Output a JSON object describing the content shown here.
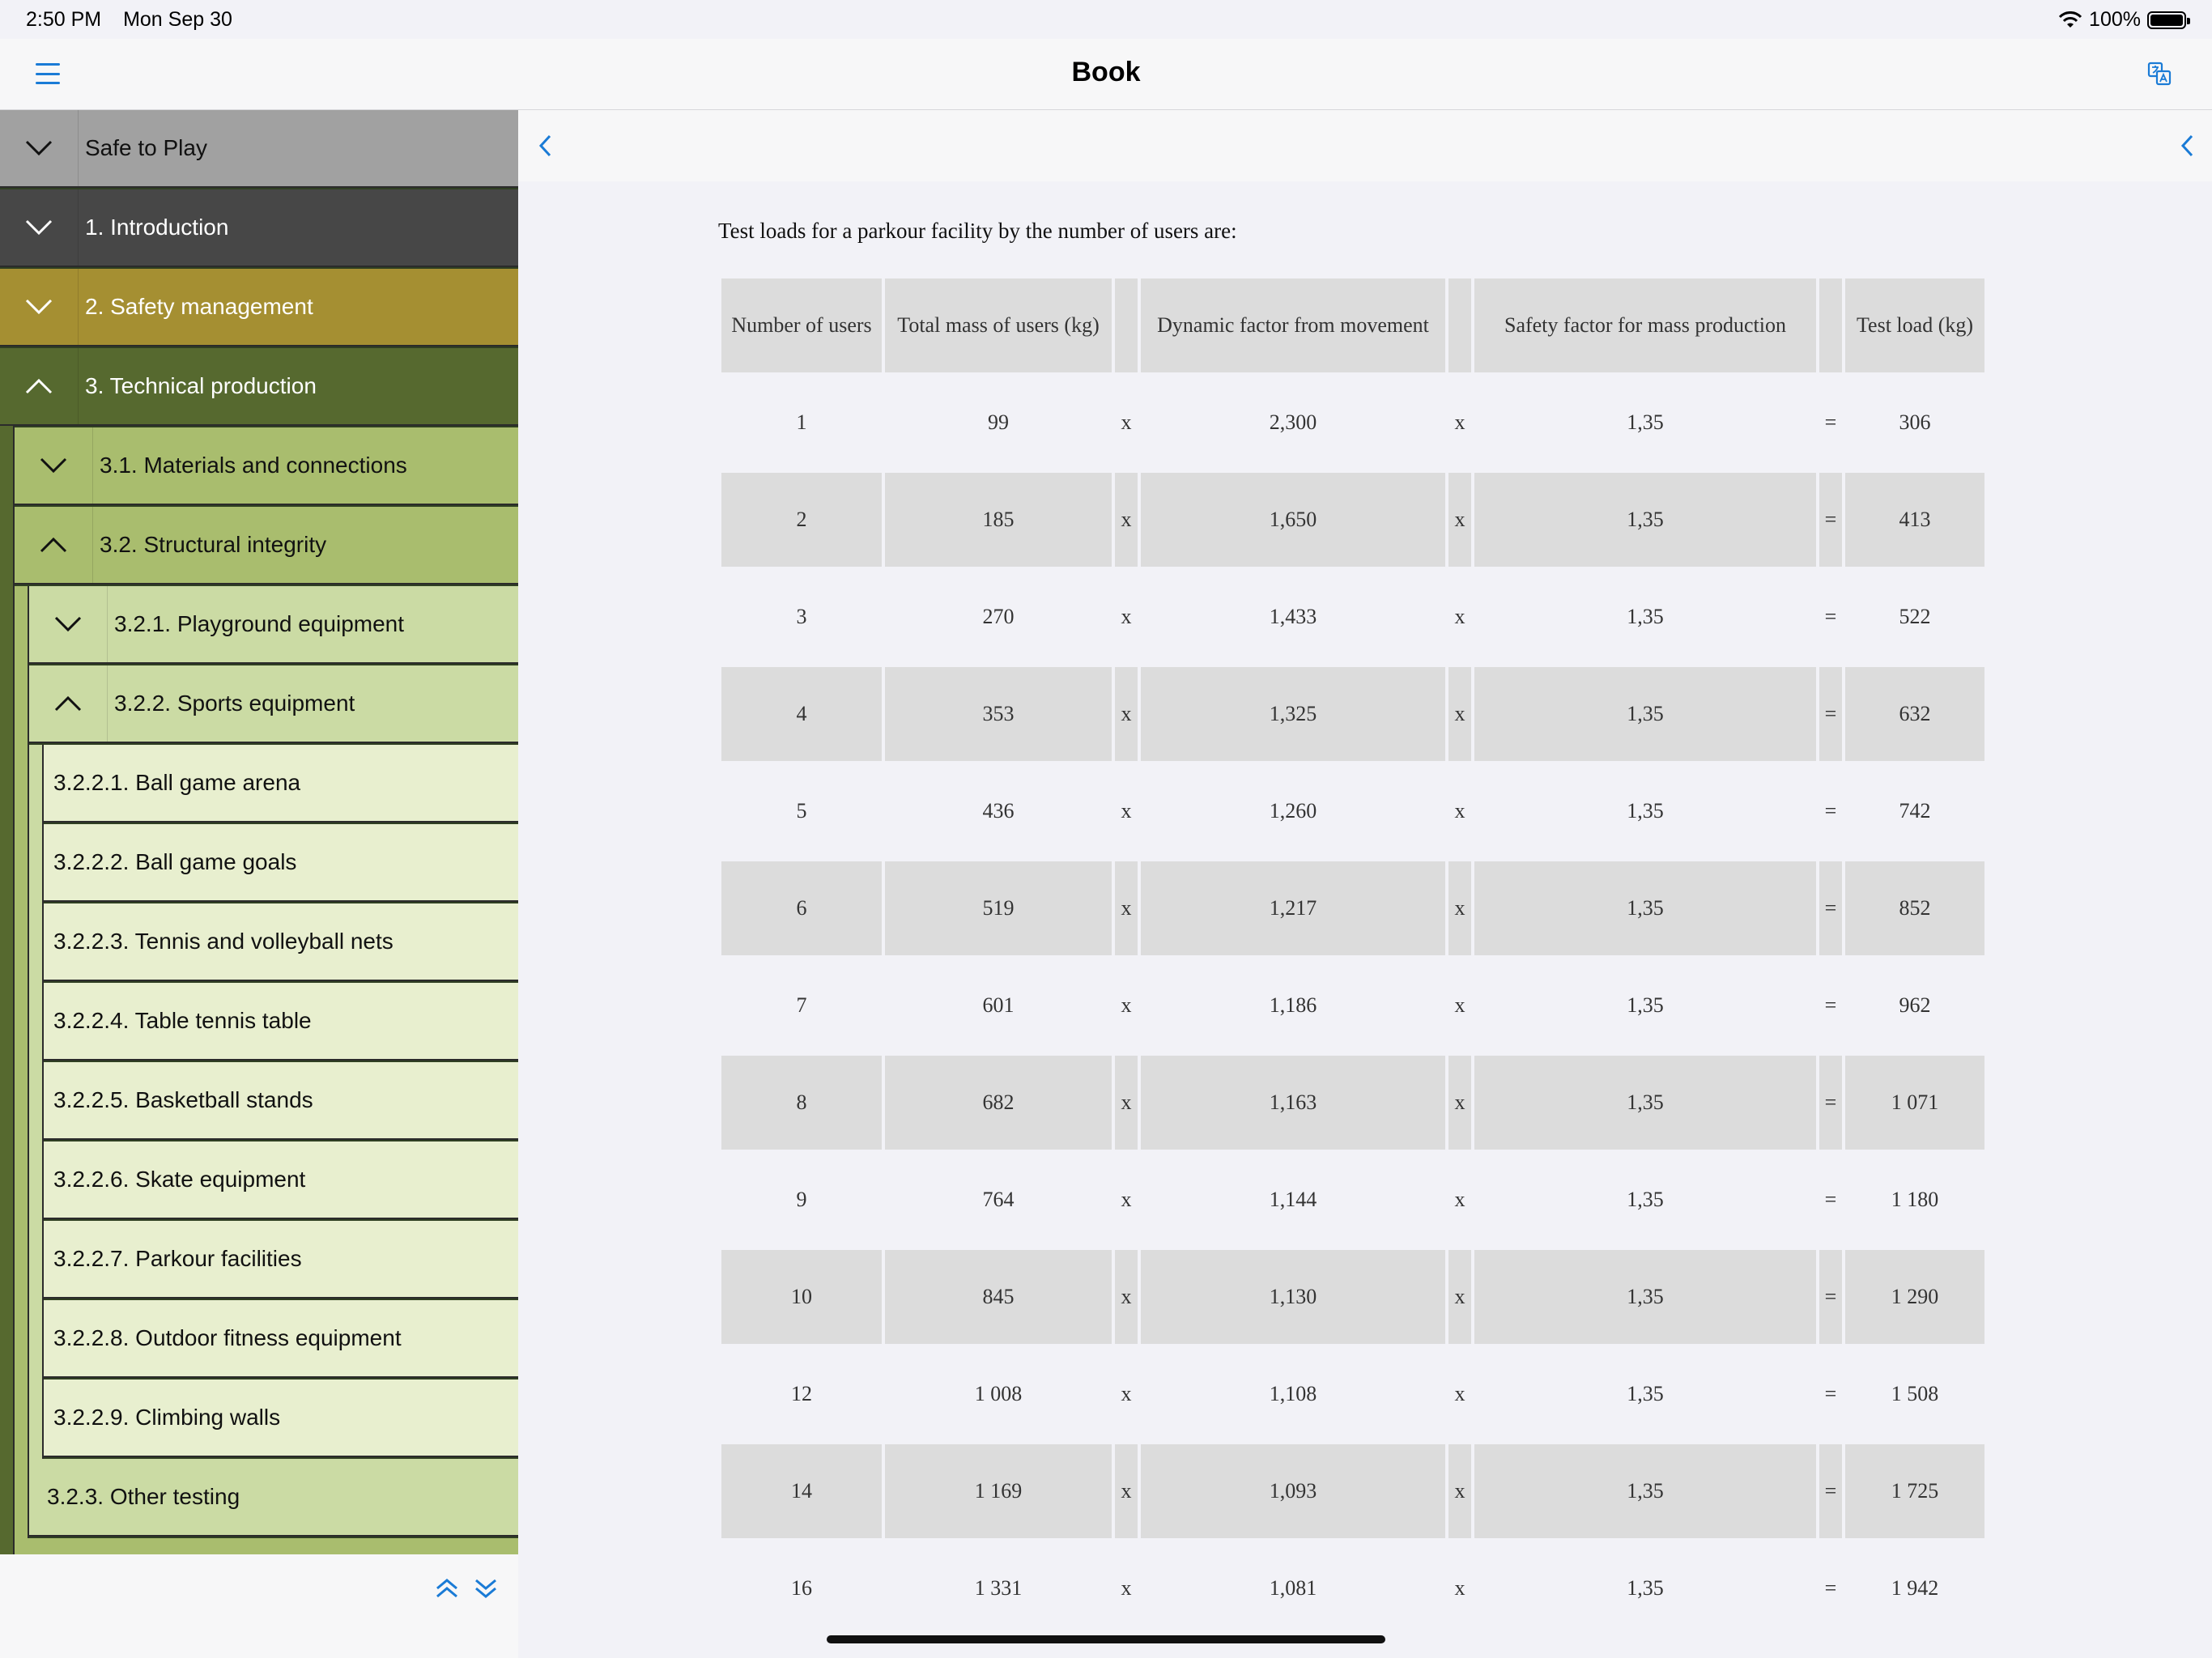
{
  "status": {
    "time": "2:50 PM",
    "date": "Mon Sep 30",
    "battery": "100%"
  },
  "nav": {
    "title": "Book"
  },
  "sidebar": {
    "items": [
      {
        "label": "Safe to Play",
        "level": 0,
        "expanded": false,
        "bg": "#a1a1a1",
        "color": "#111111"
      },
      {
        "label": "1. Introduction",
        "level": 0,
        "expanded": false,
        "bg": "#474747",
        "color": "#ffffff"
      },
      {
        "label": "2. Safety management",
        "level": 0,
        "expanded": false,
        "bg": "#a58f32",
        "color": "#ffffff"
      },
      {
        "label": "3. Technical production",
        "level": 0,
        "expanded": true,
        "bg": "#56692f",
        "color": "#ffffff"
      },
      {
        "label": "3.1. Materials and connections",
        "level": 1,
        "expanded": false,
        "bg": "#a9bd6e",
        "color": "#111111"
      },
      {
        "label": "3.2. Structural integrity",
        "level": 1,
        "expanded": true,
        "bg": "#a9bd6e",
        "color": "#111111"
      },
      {
        "label": "3.2.1. Playground equipment",
        "level": 2,
        "expanded": false,
        "bg": "#cbdba4",
        "color": "#111111"
      },
      {
        "label": "3.2.2. Sports equipment",
        "level": 2,
        "expanded": true,
        "bg": "#cbdba4",
        "color": "#111111"
      },
      {
        "label": "3.2.2.1. Ball game arena",
        "level": 3,
        "bg": "#e8efcf",
        "color": "#111111"
      },
      {
        "label": "3.2.2.2. Ball game goals",
        "level": 3,
        "bg": "#e8efcf",
        "color": "#111111"
      },
      {
        "label": "3.2.2.3. Tennis and volleyball nets",
        "level": 3,
        "bg": "#e8efcf",
        "color": "#111111"
      },
      {
        "label": "3.2.2.4. Table tennis table",
        "level": 3,
        "bg": "#e8efcf",
        "color": "#111111"
      },
      {
        "label": "3.2.2.5. Basketball stands",
        "level": 3,
        "bg": "#e8efcf",
        "color": "#111111"
      },
      {
        "label": "3.2.2.6. Skate equipment",
        "level": 3,
        "bg": "#e8efcf",
        "color": "#111111"
      },
      {
        "label": "3.2.2.7. Parkour facilities",
        "level": 3,
        "bg": "#e8efcf",
        "color": "#111111"
      },
      {
        "label": "3.2.2.8. Outdoor fitness equipment",
        "level": 3,
        "bg": "#e8efcf",
        "color": "#111111"
      },
      {
        "label": "3.2.2.9. Climbing walls",
        "level": 3,
        "bg": "#e8efcf",
        "color": "#111111"
      },
      {
        "label": "3.2.3. Other testing",
        "level": 2,
        "bg": "#cbdba4",
        "color": "#111111"
      },
      {
        "label": "",
        "level": 1,
        "bg": "#a9bd6e",
        "color": "#111111"
      }
    ]
  },
  "content": {
    "intro": "Test loads for a parkour facility by the number of users are:",
    "table": {
      "headers": [
        "Number of users",
        "Total mass of users (kg)",
        "",
        "Dynamic factor from movement",
        "",
        "Safety factor for mass production",
        "",
        "Test load (kg)"
      ],
      "rows": [
        [
          "1",
          "99",
          "x",
          "2,300",
          "x",
          "1,35",
          "=",
          "306"
        ],
        [
          "2",
          "185",
          "x",
          "1,650",
          "x",
          "1,35",
          "=",
          "413"
        ],
        [
          "3",
          "270",
          "x",
          "1,433",
          "x",
          "1,35",
          "=",
          "522"
        ],
        [
          "4",
          "353",
          "x",
          "1,325",
          "x",
          "1,35",
          "=",
          "632"
        ],
        [
          "5",
          "436",
          "x",
          "1,260",
          "x",
          "1,35",
          "=",
          "742"
        ],
        [
          "6",
          "519",
          "x",
          "1,217",
          "x",
          "1,35",
          "=",
          "852"
        ],
        [
          "7",
          "601",
          "x",
          "1,186",
          "x",
          "1,35",
          "=",
          "962"
        ],
        [
          "8",
          "682",
          "x",
          "1,163",
          "x",
          "1,35",
          "=",
          "1 071"
        ],
        [
          "9",
          "764",
          "x",
          "1,144",
          "x",
          "1,35",
          "=",
          "1 180"
        ],
        [
          "10",
          "845",
          "x",
          "1,130",
          "x",
          "1,35",
          "=",
          "1 290"
        ],
        [
          "12",
          "1 008",
          "x",
          "1,108",
          "x",
          "1,35",
          "=",
          "1 508"
        ],
        [
          "14",
          "1 169",
          "x",
          "1,093",
          "x",
          "1,35",
          "=",
          "1 725"
        ],
        [
          "16",
          "1 331",
          "x",
          "1,081",
          "x",
          "1,35",
          "=",
          "1 942"
        ]
      ]
    }
  },
  "icons": {
    "menu": "hamburger-menu-icon",
    "translate": "translate-icon",
    "back": "chevron-left-icon",
    "scroll_up": "double-chevron-up-icon",
    "scroll_down": "double-chevron-down-icon"
  },
  "colors": {
    "accent": "#1a7bd6"
  }
}
